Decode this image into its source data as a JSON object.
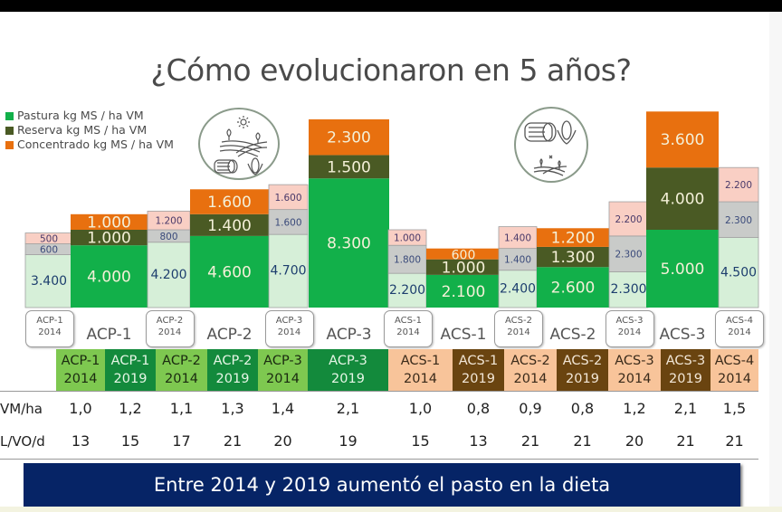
{
  "title": "¿Cómo evolucionaron en 5 años?",
  "legend": [
    {
      "label": "Pastura kg MS / ha VM",
      "color": "#12b04a"
    },
    {
      "label": "Reserva kg MS / ha VM",
      "color": "#4a5a24"
    },
    {
      "label": "Concentrado kg MS / ha VM",
      "color": "#e8700f"
    }
  ],
  "icons": [
    "pasture-landscape-icon",
    "hay-bale-icon",
    "corn-icon"
  ],
  "chart_data": {
    "type": "bar",
    "stacked": true,
    "title": "¿Cómo evolucionaron en 5 años?",
    "categories": [
      "ACP-1 2014",
      "ACP-1 2019",
      "ACP-2 2014",
      "ACP-2 2019",
      "ACP-3 2014",
      "ACP-3 2019",
      "ACS-1 2014",
      "ACS-1 2019",
      "ACS-2 2014",
      "ACS-2 2019",
      "ACS-3 2014",
      "ACS-3 2019",
      "ACS-4 2014"
    ],
    "series": [
      {
        "name": "Pastura kg MS / ha VM",
        "values": [
          3400,
          4000,
          4200,
          4600,
          4700,
          8300,
          2200,
          2100,
          2400,
          2600,
          2300,
          5000,
          4500
        ],
        "labels": [
          "3.400",
          "4.000",
          "4.200",
          "4.600",
          "4.700",
          "8.300",
          "2.200",
          "2.100",
          "2.400",
          "2.600",
          "2.300",
          "5.000",
          "4.500"
        ]
      },
      {
        "name": "Reserva kg MS / ha VM",
        "values": [
          600,
          1000,
          800,
          1400,
          1600,
          1500,
          1800,
          1000,
          1400,
          1300,
          2300,
          4000,
          2300
        ],
        "labels": [
          "600",
          "1.000",
          "800",
          "1.400",
          "1.600",
          "1.500",
          "1.800",
          "1.000",
          "1.400",
          "1.300",
          "2.300",
          "4.000",
          "2.300"
        ]
      },
      {
        "name": "Concentrado kg MS / ha VM",
        "values": [
          500,
          1000,
          1200,
          1600,
          1600,
          2300,
          1000,
          600,
          1400,
          1200,
          2200,
          3600,
          2200
        ],
        "labels": [
          "500",
          "1.000",
          "1.200",
          "1.600",
          "1.600",
          "2.300",
          "1.000",
          "600",
          "1.400",
          "1.200",
          "2.200",
          "3.600",
          "2.200"
        ]
      }
    ],
    "year_2014": [
      true,
      false,
      true,
      false,
      true,
      false,
      true,
      false,
      true,
      false,
      true,
      false,
      true
    ],
    "bar_tags": [
      "ACP-1\n2014",
      "",
      "ACP-2\n2014",
      "",
      "ACP-3\n2014",
      "",
      "ACS-1\n2014",
      "",
      "ACS-2\n2014",
      "",
      "ACS-3\n2014",
      "",
      "ACS-4\n2014"
    ],
    "group_labels": [
      "ACP-1",
      "ACP-2",
      "ACP-3",
      "ACS-1",
      "ACS-2",
      "ACS-3"
    ]
  },
  "tags": [
    {
      "l1": "ACP-1",
      "l2": "2014"
    },
    {
      "l1": "ACP-2",
      "l2": "2014"
    },
    {
      "l1": "ACP-3",
      "l2": "2014"
    },
    {
      "l1": "ACS-1",
      "l2": "2014"
    },
    {
      "l1": "ACS-2",
      "l2": "2014"
    },
    {
      "l1": "ACS-3",
      "l2": "2014"
    },
    {
      "l1": "ACS-4",
      "l2": "2014"
    }
  ],
  "groups": [
    "ACP-1",
    "ACP-2",
    "ACP-3",
    "ACS-1",
    "ACS-2",
    "ACS-3"
  ],
  "table": {
    "headers": [
      {
        "l1": "ACP-1",
        "l2": "2014",
        "bg": "#7ec850",
        "fg": "#1a2a10"
      },
      {
        "l1": "ACP-1",
        "l2": "2019",
        "bg": "#138a3c",
        "fg": "#e6f6e6"
      },
      {
        "l1": "ACP-2",
        "l2": "2014",
        "bg": "#7ec850",
        "fg": "#1a2a10"
      },
      {
        "l1": "ACP-2",
        "l2": "2019",
        "bg": "#138a3c",
        "fg": "#e6f6e6"
      },
      {
        "l1": "ACP-3",
        "l2": "2014",
        "bg": "#7ec850",
        "fg": "#1a2a10"
      },
      {
        "l1": "ACP-3",
        "l2": "2019",
        "bg": "#138a3c",
        "fg": "#e6f6e6"
      },
      {
        "l1": "ACS-1",
        "l2": "2014",
        "bg": "#f8c49a",
        "fg": "#3a2a1a"
      },
      {
        "l1": "ACS-1",
        "l2": "2019",
        "bg": "#6a4410",
        "fg": "#f2e6d6"
      },
      {
        "l1": "ACS-2",
        "l2": "2014",
        "bg": "#f8c49a",
        "fg": "#3a2a1a"
      },
      {
        "l1": "ACS-2",
        "l2": "2019",
        "bg": "#6a4410",
        "fg": "#f2e6d6"
      },
      {
        "l1": "ACS-3",
        "l2": "2014",
        "bg": "#f8c49a",
        "fg": "#3a2a1a"
      },
      {
        "l1": "ACS-3",
        "l2": "2019",
        "bg": "#6a4410",
        "fg": "#f2e6d6"
      },
      {
        "l1": "ACS-4",
        "l2": "2014",
        "bg": "#f8c49a",
        "fg": "#3a2a1a"
      }
    ],
    "rows": [
      {
        "label": "VM/ha",
        "values": [
          "1,0",
          "1,2",
          "1,1",
          "1,3",
          "1,4",
          "2,1",
          "1,0",
          "0,8",
          "0,9",
          "0,8",
          "1,2",
          "2,1",
          "1,5"
        ]
      },
      {
        "label": "L/VO/d",
        "values": [
          "13",
          "15",
          "17",
          "21",
          "20",
          "19",
          "15",
          "13",
          "21",
          "21",
          "20",
          "21",
          "21"
        ]
      }
    ]
  },
  "banner": "Entre 2014 y 2019 aumentó el pasto en la dieta"
}
